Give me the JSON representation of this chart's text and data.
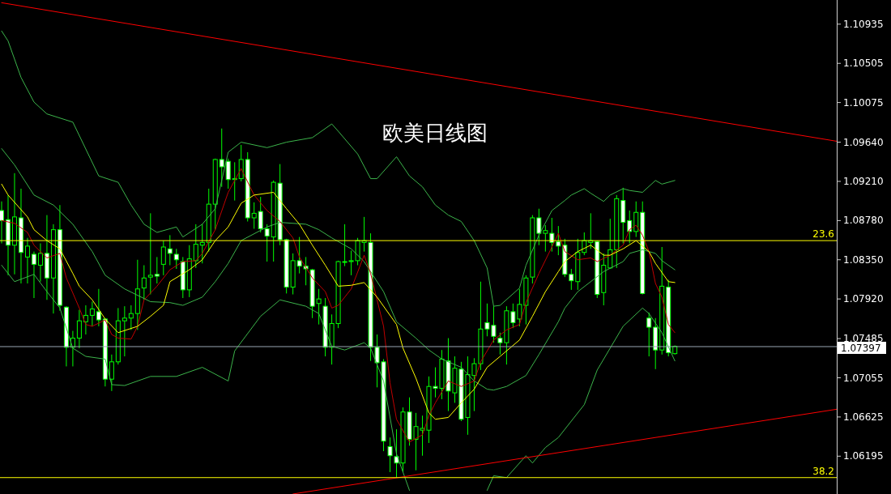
{
  "chart_data": {
    "type": "candlestick",
    "title": "欧美日线图",
    "color": "#00ff00",
    "categories": [
      null,
      null,
      null,
      null,
      null,
      null,
      null,
      null,
      null,
      null,
      null,
      null,
      null,
      null,
      null,
      null,
      null,
      null,
      null,
      null,
      null,
      null,
      null,
      null,
      null,
      null,
      null,
      null,
      null,
      null,
      null,
      null,
      null,
      null,
      null,
      null,
      null,
      null,
      null,
      null,
      null,
      null,
      null,
      null,
      null,
      null,
      null,
      null,
      null,
      null,
      null,
      null,
      null,
      null,
      null,
      null,
      null,
      null,
      null,
      null,
      null,
      null,
      null,
      null,
      null,
      null,
      null,
      null,
      null,
      null,
      null,
      null,
      null,
      null,
      null,
      null,
      null,
      null,
      null,
      null,
      null,
      null,
      null,
      null,
      null,
      null,
      null,
      null,
      null,
      null,
      null,
      null,
      null,
      null,
      null,
      null,
      null,
      null,
      null,
      null,
      null,
      null,
      null,
      null,
      null,
      null,
      null,
      null,
      null,
      null,
      null,
      null,
      null,
      null,
      null,
      null,
      null,
      null,
      null,
      null,
      null,
      null,
      null,
      null,
      null,
      null,
      null,
      null,
      null,
      null
    ],
    "ohlc": [
      [
        1.0889,
        1.0899,
        1.0853,
        1.0878
      ],
      [
        1.0879,
        1.0906,
        1.0818,
        1.0851
      ],
      [
        1.0851,
        1.093,
        1.0819,
        1.0882
      ],
      [
        1.0881,
        1.0913,
        1.0809,
        1.0843
      ],
      [
        1.0838,
        1.0859,
        1.0809,
        1.085
      ],
      [
        1.0841,
        1.0844,
        1.0793,
        1.083
      ],
      [
        1.0829,
        1.0853,
        1.0811,
        1.0842
      ],
      [
        1.0842,
        1.0884,
        1.0791,
        1.0815
      ],
      [
        1.0815,
        1.0874,
        1.0776,
        1.0868
      ],
      [
        1.0868,
        1.0895,
        1.0779,
        1.0785
      ],
      [
        1.0783,
        1.0784,
        1.0718,
        1.0739
      ],
      [
        1.0739,
        1.0757,
        1.0718,
        1.0749
      ],
      [
        1.0749,
        1.078,
        1.0738,
        1.0768
      ],
      [
        1.0767,
        1.0785,
        1.0753,
        1.0774
      ],
      [
        1.0774,
        1.0789,
        1.0762,
        1.0781
      ],
      [
        1.0778,
        1.0803,
        1.0762,
        1.0769
      ],
      [
        1.077,
        1.0771,
        1.0696,
        1.0704
      ],
      [
        1.0704,
        1.0731,
        1.0691,
        1.0723
      ],
      [
        1.0723,
        1.0782,
        1.072,
        1.0768
      ],
      [
        1.0768,
        1.0784,
        1.0729,
        1.0771
      ],
      [
        1.0771,
        1.0785,
        1.0758,
        1.0776
      ],
      [
        1.0776,
        1.0835,
        1.0758,
        1.0803
      ],
      [
        1.0804,
        1.0829,
        1.0791,
        1.0815
      ],
      [
        1.0816,
        1.0886,
        1.0797,
        1.0818
      ],
      [
        1.0819,
        1.0838,
        1.0809,
        1.0817
      ],
      [
        1.083,
        1.0856,
        1.0818,
        1.0849
      ],
      [
        1.0847,
        1.0862,
        1.0829,
        1.0842
      ],
      [
        1.0841,
        1.0847,
        1.0825,
        1.0835
      ],
      [
        1.0833,
        1.0838,
        1.0793,
        1.0802
      ],
      [
        1.0802,
        1.0851,
        1.0794,
        1.0836
      ],
      [
        1.0834,
        1.0874,
        1.0826,
        1.0852
      ],
      [
        1.0851,
        1.0874,
        1.0831,
        1.0854
      ],
      [
        1.0854,
        1.0913,
        1.0844,
        1.0896
      ],
      [
        1.0896,
        1.0946,
        1.0868,
        1.0945
      ],
      [
        1.0945,
        1.0979,
        1.0915,
        1.0937
      ],
      [
        1.0943,
        1.0946,
        1.0913,
        1.0923
      ],
      [
        1.0923,
        1.0942,
        1.09,
        1.0924
      ],
      [
        1.0924,
        1.0961,
        1.0921,
        1.0945
      ],
      [
        1.0945,
        1.0953,
        1.0877,
        1.0881
      ],
      [
        1.0881,
        1.0898,
        1.0869,
        1.0886
      ],
      [
        1.0888,
        1.0904,
        1.0865,
        1.0869
      ],
      [
        1.0869,
        1.0874,
        1.0833,
        1.0861
      ],
      [
        1.086,
        1.0922,
        1.0833,
        1.092
      ],
      [
        1.0919,
        1.094,
        1.0851,
        1.0857
      ],
      [
        1.0857,
        1.0858,
        1.0798,
        1.0805
      ],
      [
        1.0805,
        1.0842,
        1.0797,
        1.0834
      ],
      [
        1.0834,
        1.086,
        1.082,
        1.0828
      ],
      [
        1.0828,
        1.0838,
        1.0807,
        1.0825
      ],
      [
        1.0824,
        1.0825,
        1.0771,
        1.0784
      ],
      [
        1.0787,
        1.0803,
        1.0764,
        1.0792
      ],
      [
        1.0784,
        1.0793,
        1.0729,
        1.0739
      ],
      [
        1.0739,
        1.0775,
        1.072,
        1.0765
      ],
      [
        1.0765,
        1.0834,
        1.076,
        1.0833
      ],
      [
        1.0833,
        1.0874,
        1.0828,
        1.0833
      ],
      [
        1.0833,
        1.0845,
        1.0818,
        1.0834
      ],
      [
        1.0834,
        1.0859,
        1.0829,
        1.0856
      ],
      [
        1.0854,
        1.0882,
        1.0844,
        1.0856
      ],
      [
        1.0854,
        1.0864,
        1.0724,
        1.0739
      ],
      [
        1.0739,
        1.0753,
        1.0695,
        1.0722
      ],
      [
        1.0723,
        1.0726,
        1.0625,
        1.0636
      ],
      [
        1.063,
        1.064,
        1.0602,
        1.062
      ],
      [
        1.0619,
        1.0649,
        1.0596,
        1.0612
      ],
      [
        1.0612,
        1.0673,
        1.0602,
        1.0668
      ],
      [
        1.0668,
        1.0684,
        1.0631,
        1.0638
      ],
      [
        1.0638,
        1.0667,
        1.0604,
        1.0652
      ],
      [
        1.0648,
        1.0664,
        1.062,
        1.065
      ],
      [
        1.0648,
        1.0707,
        1.0634,
        1.0696
      ],
      [
        1.0696,
        1.0717,
        1.0684,
        1.0694
      ],
      [
        1.0694,
        1.0736,
        1.0682,
        1.0726
      ],
      [
        1.0724,
        1.0749,
        1.0669,
        1.0691
      ],
      [
        1.0689,
        1.0729,
        1.0678,
        1.0716
      ],
      [
        1.0715,
        1.0723,
        1.0658,
        1.066
      ],
      [
        1.0662,
        1.0729,
        1.0643,
        1.0709
      ],
      [
        1.0708,
        1.0727,
        1.0669,
        1.0721
      ],
      [
        1.0721,
        1.0811,
        1.0714,
        1.0759
      ],
      [
        1.0766,
        1.0787,
        1.0751,
        1.0759
      ],
      [
        1.0763,
        1.0784,
        1.0744,
        1.0751
      ],
      [
        1.0749,
        1.0755,
        1.0731,
        1.0744
      ],
      [
        1.0744,
        1.0784,
        1.072,
        1.0779
      ],
      [
        1.0778,
        1.0787,
        1.076,
        1.0766
      ],
      [
        1.077,
        1.0803,
        1.0762,
        1.0786
      ],
      [
        1.0785,
        1.0818,
        1.0764,
        1.0815
      ],
      [
        1.0816,
        1.0884,
        1.0809,
        1.0881
      ],
      [
        1.0881,
        1.0891,
        1.0851,
        1.0864
      ],
      [
        1.0864,
        1.0873,
        1.0844,
        1.0867
      ],
      [
        1.0864,
        1.0881,
        1.0844,
        1.0854
      ],
      [
        1.0855,
        1.0872,
        1.084,
        1.085
      ],
      [
        1.0851,
        1.0858,
        1.0816,
        1.0819
      ],
      [
        1.0819,
        1.0825,
        1.0802,
        1.0812
      ],
      [
        1.0811,
        1.0858,
        1.0802,
        1.0843
      ],
      [
        1.0843,
        1.0865,
        1.084,
        1.0856
      ],
      [
        1.0854,
        1.0886,
        1.0847,
        1.0856
      ],
      [
        1.0855,
        1.0856,
        1.0793,
        1.0797
      ],
      [
        1.0799,
        1.0842,
        1.0785,
        1.0829
      ],
      [
        1.0826,
        1.088,
        1.0825,
        1.0846
      ],
      [
        1.0846,
        1.0906,
        1.0826,
        1.0902
      ],
      [
        1.09,
        1.0914,
        1.0853,
        1.0876
      ],
      [
        1.0878,
        1.0889,
        1.0853,
        1.0866
      ],
      [
        1.0866,
        1.0899,
        1.086,
        1.0887
      ],
      [
        1.0887,
        1.0899,
        1.0797,
        1.0798
      ],
      [
        1.0771,
        1.0777,
        1.0729,
        1.0761
      ],
      [
        1.0761,
        1.0771,
        1.0715,
        1.0736
      ],
      [
        1.0736,
        1.0849,
        1.0731,
        1.0806
      ],
      [
        1.0805,
        1.0813,
        1.0729,
        1.0733
      ],
      [
        1.0732,
        1.0741,
        1.0731,
        1.074
      ],
      null,
      null,
      null,
      null,
      null,
      null,
      null,
      null,
      null,
      null,
      null,
      null,
      null,
      null,
      null,
      null,
      null,
      null,
      null,
      null,
      null,
      null,
      null,
      null,
      null
    ],
    "ylim": [
      1.0578,
      1.112
    ],
    "yticks": [
      1.10935,
      1.10505,
      1.10075,
      {
        "value": 1.0964,
        "label": "1.09640"
      },
      {
        "value": 1.0921,
        "label": "1.09210"
      },
      {
        "value": 1.0878,
        "label": "1.08780"
      },
      {
        "value": 1.0835,
        "label": "1.08350"
      },
      {
        "value": 1.0792,
        "label": "1.07920"
      },
      1.07485,
      1.07055,
      1.06625,
      1.06195
    ],
    "tick_labels": "y",
    "series": [
      {
        "type": "line",
        "color": "#3cb44b",
        "values": [
          1.1086,
          1.1075,
          null,
          1.1035,
          null,
          1.1008,
          null,
          1.0995,
          null,
          null,
          null,
          1.0986,
          null,
          null,
          null,
          1.0927,
          null,
          null,
          1.092,
          null,
          1.0895,
          null,
          1.0874,
          null,
          1.0865,
          null,
          null,
          1.0871,
          1.086,
          null,
          null,
          1.0874,
          null,
          1.0891,
          null,
          1.0953,
          null,
          1.0964,
          null,
          null,
          null,
          1.0958,
          null,
          null,
          1.0964,
          null,
          null,
          null,
          1.0969,
          null,
          null,
          1.0984,
          1.0976,
          null,
          null,
          1.0951,
          null,
          1.0924,
          1.0924,
          null,
          null,
          1.0948,
          null,
          1.0927,
          null,
          1.0915,
          null,
          1.0895,
          null,
          1.0884,
          null,
          1.0877,
          null,
          1.0856,
          null,
          1.0826,
          1.0784,
          1.0785,
          null,
          null,
          1.0804,
          1.0829,
          null,
          1.0862,
          null,
          1.0889,
          null,
          1.09,
          1.0906,
          null,
          1.0913,
          1.0908,
          null,
          1.0899,
          1.0906,
          null,
          1.0913,
          1.0911,
          null,
          1.0909,
          null,
          1.0922,
          1.0918,
          null,
          1.0922,
          null,
          null,
          null,
          null,
          null,
          null,
          null,
          null,
          null,
          null,
          null,
          null,
          null,
          null,
          null,
          null,
          null,
          null,
          null,
          null,
          null,
          null,
          null,
          null,
          null
        ]
      },
      {
        "type": "line",
        "color": "#3cb44b",
        "values": [
          1.0957,
          null,
          1.0939,
          null,
          null,
          1.0906,
          null,
          null,
          1.0895,
          null,
          null,
          1.0874,
          null,
          null,
          1.0844,
          null,
          1.0818,
          null,
          null,
          1.0803,
          null,
          null,
          null,
          1.0789,
          null,
          null,
          1.0788,
          null,
          1.0785,
          null,
          null,
          1.0794,
          null,
          1.0811,
          null,
          1.0831,
          null,
          1.0856,
          null,
          null,
          null,
          1.0871,
          null,
          1.0876,
          null,
          null,
          null,
          1.0874,
          null,
          1.0868,
          null,
          1.0859,
          null,
          null,
          1.0847,
          null,
          1.0833,
          null,
          null,
          1.08,
          null,
          1.0767,
          null,
          null,
          1.0749,
          null,
          1.0736,
          null,
          1.0726,
          null,
          null,
          1.0717,
          null,
          1.0702,
          null,
          1.0693,
          1.0692,
          null,
          1.0696,
          null,
          null,
          1.0708,
          null,
          1.0731,
          null,
          null,
          1.0767,
          1.0782,
          null,
          1.08,
          null,
          1.0811,
          null,
          1.0822,
          null,
          null,
          1.0833,
          1.0842,
          null,
          1.0846,
          null,
          1.0842,
          1.0834,
          null,
          1.0824,
          null,
          null,
          null,
          null,
          null,
          null,
          null,
          null,
          null,
          null,
          null,
          null,
          null,
          null,
          null,
          null,
          null,
          null,
          null,
          null,
          null,
          null,
          null,
          null,
          null
        ]
      },
      {
        "type": "line",
        "color": "#3cb44b",
        "values": [
          1.0829,
          null,
          1.0811,
          null,
          null,
          1.0819,
          null,
          1.08,
          null,
          1.0782,
          null,
          1.0738,
          null,
          1.0729,
          null,
          null,
          1.0726,
          1.0698,
          null,
          1.0697,
          null,
          null,
          null,
          1.0707,
          null,
          null,
          null,
          1.0707,
          null,
          null,
          null,
          1.0717,
          null,
          null,
          null,
          1.0702,
          1.0735,
          null,
          null,
          null,
          1.0773,
          null,
          null,
          1.0791,
          null,
          null,
          null,
          1.0784,
          null,
          1.0776,
          null,
          1.074,
          null,
          1.0736,
          null,
          null,
          1.0744,
          1.0738,
          null,
          1.0702,
          null,
          1.0622,
          null,
          1.0582,
          null,
          null,
          null,
          null,
          null,
          null,
          null,
          null,
          null,
          null,
          null,
          null,
          null,
          null,
          null,
          null,
          null,
          null,
          null,
          null,
          null,
          null,
          null,
          null,
          null,
          null,
          null,
          null,
          null,
          null,
          null,
          null,
          null,
          null,
          null,
          null,
          null,
          null,
          null,
          null,
          null,
          null,
          null,
          null,
          null,
          null,
          null,
          null,
          null,
          null,
          null,
          null,
          null,
          null,
          null,
          null,
          null,
          null,
          null,
          null,
          null,
          null,
          null,
          null,
          null,
          null
        ]
      },
      {
        "type": "line",
        "color": "#3cb44b",
        "values": [
          null,
          null,
          null,
          null,
          null,
          null,
          null,
          null,
          null,
          null,
          null,
          null,
          null,
          null,
          null,
          null,
          null,
          null,
          null,
          null,
          null,
          null,
          null,
          null,
          null,
          null,
          null,
          null,
          null,
          null,
          null,
          null,
          null,
          null,
          null,
          null,
          null,
          null,
          null,
          null,
          null,
          null,
          null,
          null,
          null,
          null,
          null,
          null,
          null,
          null,
          null,
          null,
          null,
          null,
          null,
          null,
          null,
          null,
          null,
          null,
          null,
          null,
          null,
          null,
          null,
          null,
          null,
          null,
          null,
          null,
          null,
          null,
          null,
          null,
          null,
          1.0582,
          1.0598,
          null,
          1.0596,
          null,
          null,
          1.062,
          1.0612,
          null,
          1.0629,
          null,
          1.064,
          null,
          null,
          null,
          1.0676,
          null,
          1.0714,
          null,
          1.0738,
          null,
          1.0762,
          null,
          null,
          1.0782,
          1.0776,
          null,
          1.0755,
          null,
          1.0724,
          null,
          null,
          null,
          null,
          null,
          null,
          null,
          null,
          null,
          null,
          null,
          null,
          null,
          null,
          null,
          null,
          null,
          null,
          null,
          null,
          null,
          null,
          null,
          null,
          null
        ]
      },
      {
        "type": "line",
        "color": "#c00000",
        "values": [
          1.0878,
          null,
          1.0875,
          null,
          1.0865,
          1.0851,
          null,
          1.0837,
          null,
          1.0842,
          1.0815,
          null,
          1.0782,
          1.0764,
          1.0762,
          null,
          1.0769,
          1.0753,
          1.0749,
          null,
          1.0748,
          1.0762,
          1.0791,
          null,
          1.0806,
          null,
          1.0824,
          null,
          1.0833,
          null,
          1.0834,
          1.0842,
          null,
          1.0868,
          null,
          1.0909,
          null,
          1.0935,
          null,
          1.0906,
          null,
          1.0889,
          null,
          1.0877,
          null,
          1.0859,
          1.0838,
          null,
          1.0815,
          null,
          1.08,
          1.0782,
          1.0785,
          null,
          1.0803,
          null,
          1.084,
          1.082,
          null,
          1.0762,
          1.07,
          1.066,
          null,
          1.0635,
          null,
          1.0643,
          1.0664,
          1.0678,
          null,
          1.0702,
          null,
          1.0696,
          null,
          1.0702,
          1.0723,
          null,
          1.0747,
          null,
          1.0758,
          null,
          1.0764,
          1.0788,
          null,
          1.082,
          null,
          1.0849,
          1.0864,
          1.0844,
          null,
          1.0835,
          null,
          1.0837,
          1.0833,
          null,
          1.084,
          null,
          1.0851,
          1.0868,
          1.0873,
          1.0862,
          1.0844,
          1.0809,
          1.0794,
          1.0764,
          1.0755,
          null,
          null,
          null,
          null,
          null,
          null,
          null,
          null,
          null,
          null,
          null,
          null,
          null,
          null,
          null,
          null,
          null,
          null,
          null,
          null,
          null,
          null,
          null,
          null,
          null
        ]
      },
      {
        "type": "line",
        "color": "#ffff00",
        "values": [
          1.0918,
          1.0906,
          null,
          null,
          1.0882,
          1.0868,
          null,
          1.0856,
          null,
          1.0847,
          null,
          1.082,
          1.0806,
          null,
          1.0791,
          null,
          1.077,
          null,
          1.0755,
          null,
          null,
          1.0762,
          null,
          1.0773,
          null,
          1.0785,
          1.0811,
          null,
          null,
          1.0824,
          null,
          1.0835,
          null,
          1.0856,
          null,
          1.0871,
          null,
          1.0897,
          null,
          1.0906,
          null,
          null,
          1.0909,
          null,
          1.0891,
          null,
          1.0874,
          null,
          1.0851,
          null,
          1.0829,
          null,
          1.0806,
          null,
          1.0807,
          null,
          1.081,
          null,
          1.0794,
          null,
          null,
          1.0764,
          1.0738,
          null,
          1.0705,
          null,
          1.0667,
          1.066,
          null,
          1.0662,
          null,
          1.0678,
          null,
          1.0693,
          null,
          1.0717,
          null,
          1.0729,
          null,
          null,
          1.0747,
          null,
          1.0773,
          null,
          1.08,
          null,
          1.0822,
          1.0833,
          null,
          1.0844,
          null,
          1.0851,
          null,
          1.084,
          1.084,
          null,
          1.0847,
          null,
          1.0856,
          null,
          1.0844,
          1.0831,
          null,
          1.0811,
          1.081,
          null,
          null,
          null,
          null,
          null,
          null,
          null,
          null,
          null,
          null,
          null,
          null,
          null,
          null,
          null,
          null,
          null,
          null,
          null,
          null,
          null,
          null,
          null,
          null,
          null
        ]
      },
      {
        "type": "line",
        "color": "#ff0000",
        "values": [
          1.1117,
          null,
          null,
          null,
          null,
          null,
          null,
          null,
          null,
          null,
          null,
          null,
          null,
          null,
          null,
          null,
          null,
          null,
          null,
          null,
          null,
          null,
          null,
          null,
          null,
          null,
          null,
          null,
          null,
          null,
          null,
          null,
          null,
          null,
          null,
          null,
          null,
          null,
          null,
          null,
          null,
          null,
          null,
          null,
          null,
          null,
          null,
          null,
          null,
          null,
          null,
          null,
          null,
          null,
          null,
          null,
          null,
          null,
          null,
          null,
          null,
          null,
          null,
          null,
          null,
          null,
          null,
          null,
          null,
          null,
          null,
          null,
          null,
          null,
          null,
          null,
          null,
          null,
          null,
          null,
          null,
          null,
          null,
          null,
          null,
          null,
          null,
          null,
          null,
          null,
          null,
          null,
          null,
          null,
          null,
          null,
          null,
          null,
          null,
          null,
          null,
          null,
          null,
          null,
          null,
          null,
          null,
          null,
          null,
          null,
          null,
          null,
          null,
          null,
          null,
          null,
          null,
          null,
          null,
          null,
          null,
          null,
          null,
          null,
          null,
          null,
          null,
          null,
          null,
          1.0965
        ]
      },
      {
        "type": "line",
        "color": "#ff0000",
        "values": [
          null,
          null,
          null,
          null,
          null,
          null,
          null,
          null,
          null,
          null,
          null,
          null,
          null,
          null,
          null,
          null,
          null,
          null,
          null,
          null,
          null,
          null,
          null,
          null,
          null,
          null,
          null,
          null,
          null,
          null,
          null,
          null,
          null,
          null,
          null,
          null,
          null,
          null,
          null,
          null,
          null,
          null,
          null,
          null,
          null,
          1.0578,
          null,
          null,
          null,
          null,
          null,
          null,
          null,
          null,
          null,
          null,
          null,
          null,
          null,
          null,
          null,
          null,
          null,
          null,
          null,
          null,
          null,
          null,
          null,
          null,
          null,
          null,
          null,
          null,
          null,
          null,
          null,
          null,
          null,
          null,
          null,
          null,
          null,
          null,
          null,
          null,
          null,
          null,
          null,
          null,
          null,
          null,
          null,
          null,
          null,
          null,
          null,
          null,
          null,
          null,
          null,
          null,
          null,
          null,
          null,
          null,
          null,
          null,
          null,
          null,
          null,
          null,
          null,
          null,
          null,
          null,
          null,
          null,
          null,
          null,
          null,
          null,
          null,
          null,
          null,
          null,
          null,
          null,
          null,
          1.0671
        ]
      }
    ],
    "ref_lines": [
      {
        "axis": "y",
        "value": 1.0856,
        "color": "#ffff00"
      },
      {
        "axis": "y",
        "value": 1.0596,
        "color": "#ffff00"
      },
      {
        "axis": "y",
        "value": 1.07397,
        "label": "1.07397",
        "color": "#9aa6b2"
      }
    ],
    "annotations": [
      {
        "text": "23.6",
        "y": 1.0856
      },
      {
        "text": "38.2",
        "y": 1.0596
      }
    ]
  }
}
